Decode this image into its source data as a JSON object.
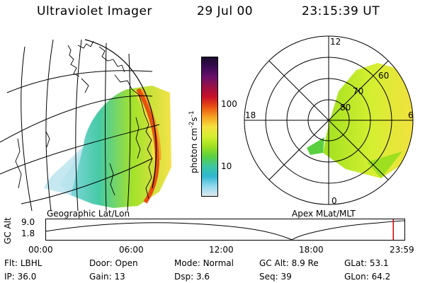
{
  "header": {
    "title": "Ultraviolet Imager",
    "date": "29 Jul 00",
    "time": "23:15:39 UT"
  },
  "left_panel": {
    "label": "Geographic Lat/Lon"
  },
  "right_panel": {
    "label": "Apex MLat/MLT",
    "mlt_labels": {
      "top": "12",
      "left": "18",
      "right": "6",
      "bottom": "0"
    },
    "lat_labels": [
      "80",
      "70",
      "60"
    ]
  },
  "colorbar": {
    "unit_label": "photon cm",
    "unit_exp1": "-2",
    "unit_s": "s",
    "unit_exp2": "-1",
    "ticks": [
      "100",
      "10"
    ],
    "colors": [
      "#1a0a2a",
      "#3a0a55",
      "#6a0f6a",
      "#9a1044",
      "#c8102a",
      "#e85010",
      "#f7a020",
      "#f5e040",
      "#d4ef30",
      "#9ee020",
      "#5ad040",
      "#3cc7a0",
      "#30b7d0",
      "#8fd8ee",
      "#dde9ee"
    ]
  },
  "altitude_plot": {
    "ylabel": "GC Alt",
    "yticks": [
      "9.0",
      "1.8"
    ],
    "xticks": [
      "00:00",
      "06:00",
      "12:00",
      "18:00",
      "23:59"
    ],
    "marker_time_fraction": 0.967
  },
  "info": {
    "row1": [
      {
        "label": "Flt:",
        "value": "LBHL"
      },
      {
        "label": "Door:",
        "value": "Open"
      },
      {
        "label": "Mode:",
        "value": "Normal"
      },
      {
        "label": "GC Alt:",
        "value": "8.9 Re"
      },
      {
        "label": "GLat:",
        "value": "53.1"
      }
    ],
    "row2": [
      {
        "label": "IP:",
        "value": "36.0"
      },
      {
        "label": "Gain:",
        "value": "13"
      },
      {
        "label": "Dsp:",
        "value": "3.6"
      },
      {
        "label": "Seq:",
        "value": "39"
      },
      {
        "label": "GLon:",
        "value": "64.2"
      }
    ]
  }
}
